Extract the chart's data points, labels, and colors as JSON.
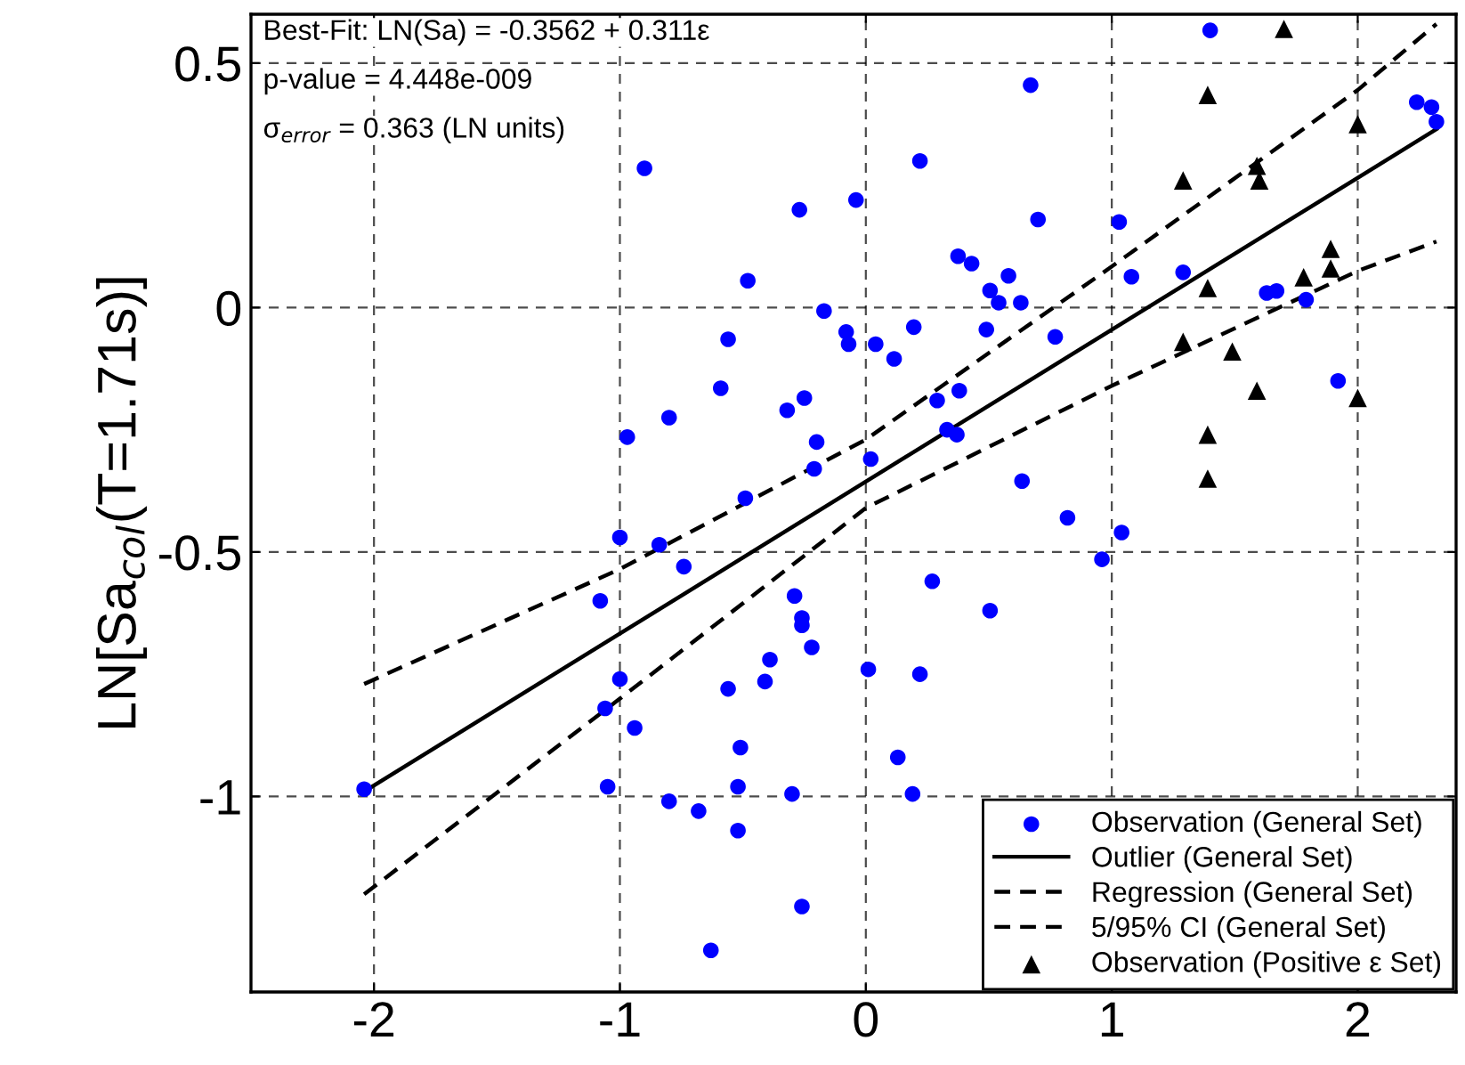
{
  "chart_data": {
    "type": "scatter",
    "ylabel": "LN[Sa$_{col}$(T=1.71s)]",
    "xlim": [
      -2.5,
      2.4
    ],
    "ylim": [
      -1.4,
      0.6
    ],
    "xticks": [
      -2,
      -1,
      0,
      1,
      2
    ],
    "yticks": [
      -1,
      -0.5,
      0,
      0.5
    ],
    "grid": true,
    "legend": "bottom right",
    "annotations": [
      "Best-Fit: LN(Sa) = -0.3562 + 0.311ε",
      "p-value = 4.448e-009",
      "σ$_{error}$ = 0.363 (LN units)"
    ],
    "series": [
      {
        "name": "Observation (General Set)",
        "color": "#0000ff",
        "marker": "circle",
        "x": [
          -0.9,
          -0.27,
          -0.04,
          -0.48,
          -0.17,
          -0.08,
          -0.07,
          -0.56,
          -0.59,
          -0.32,
          -0.25,
          -0.8,
          -0.97,
          -0.2,
          -0.21,
          -0.49,
          1.4,
          0.67,
          0.22,
          0.7,
          1.03,
          0.375,
          0.43,
          0.58,
          0.505,
          0.54,
          0.63,
          1.08,
          1.29,
          1.63,
          1.67,
          1.79,
          2.24,
          2.3,
          2.32,
          1.92,
          0.195,
          0.49,
          0.77,
          0.04,
          0.115,
          0.38,
          0.29,
          0.33,
          0.37,
          0.02,
          0.635,
          -1.0,
          -0.84,
          -0.74,
          -1.08,
          -1.0,
          -1.06,
          -0.94,
          -0.29,
          -0.26,
          -0.26,
          -0.22,
          -0.39,
          -0.41,
          -0.56,
          -0.51,
          -1.05,
          -2.04,
          -0.52,
          -0.3,
          -0.8,
          -0.68,
          -0.52,
          -0.26,
          -0.63,
          0.82,
          1.04,
          0.96,
          0.27,
          0.505,
          0.01,
          0.22,
          0.13,
          0.19
        ],
        "values": [
          0.285,
          0.2,
          0.22,
          0.055,
          -0.007,
          -0.05,
          -0.075,
          -0.065,
          -0.165,
          -0.21,
          -0.185,
          -0.225,
          -0.265,
          -0.275,
          -0.33,
          -0.39,
          0.567,
          0.455,
          0.3,
          0.18,
          0.175,
          0.105,
          0.09,
          0.065,
          0.035,
          0.01,
          0.01,
          0.063,
          0.072,
          0.03,
          0.034,
          0.016,
          0.42,
          0.41,
          0.38,
          -0.15,
          -0.04,
          -0.045,
          -0.06,
          -0.075,
          -0.105,
          -0.17,
          -0.19,
          -0.25,
          -0.26,
          -0.31,
          -0.355,
          -0.47,
          -0.485,
          -0.53,
          -0.6,
          -0.76,
          -0.82,
          -0.86,
          -0.59,
          -0.635,
          -0.65,
          -0.695,
          -0.72,
          -0.765,
          -0.78,
          -0.9,
          -0.98,
          -0.985,
          -0.98,
          -0.995,
          -1.01,
          -1.03,
          -1.07,
          -1.225,
          -1.315,
          -0.43,
          -0.46,
          -0.515,
          -0.56,
          -0.62,
          -0.74,
          -0.75,
          -0.92,
          -0.995
        ]
      },
      {
        "name": "Outlier (General Set)",
        "type": "line",
        "color": "#000000",
        "line_style": "solid",
        "marker": "none",
        "x": [
          -2.04,
          2.32
        ],
        "values": [
          -0.99,
          0.365
        ]
      },
      {
        "name": "Regression (General Set)",
        "type": "line",
        "color": "#000000",
        "line_style": "dashed",
        "marker": "none",
        "x": [
          -2.04,
          -1,
          0,
          1,
          2,
          2.32
        ],
        "values": [
          -0.77,
          -0.535,
          -0.27,
          0.084,
          0.445,
          0.58
        ]
      },
      {
        "name": "5/95% CI (General Set)",
        "type": "line",
        "color": "#000000",
        "line_style": "dashed",
        "marker": "none",
        "x": [
          -2.04,
          -1,
          0,
          1,
          2,
          2.32
        ],
        "values": [
          -1.2,
          -0.8,
          -0.41,
          -0.16,
          0.075,
          0.135
        ]
      },
      {
        "name": "Observation (Positive ε Set)",
        "color": "#000000",
        "marker": "triangle",
        "x": [
          1.7,
          1.39,
          2.0,
          1.29,
          1.59,
          1.6,
          1.89,
          1.89,
          1.78,
          1.39,
          1.29,
          1.49,
          1.59,
          2.0,
          1.39,
          1.39
        ],
        "values": [
          0.57,
          0.435,
          0.375,
          0.26,
          0.29,
          0.26,
          0.12,
          0.08,
          0.062,
          0.04,
          -0.07,
          -0.09,
          -0.17,
          -0.185,
          -0.26,
          -0.35
        ]
      }
    ]
  }
}
